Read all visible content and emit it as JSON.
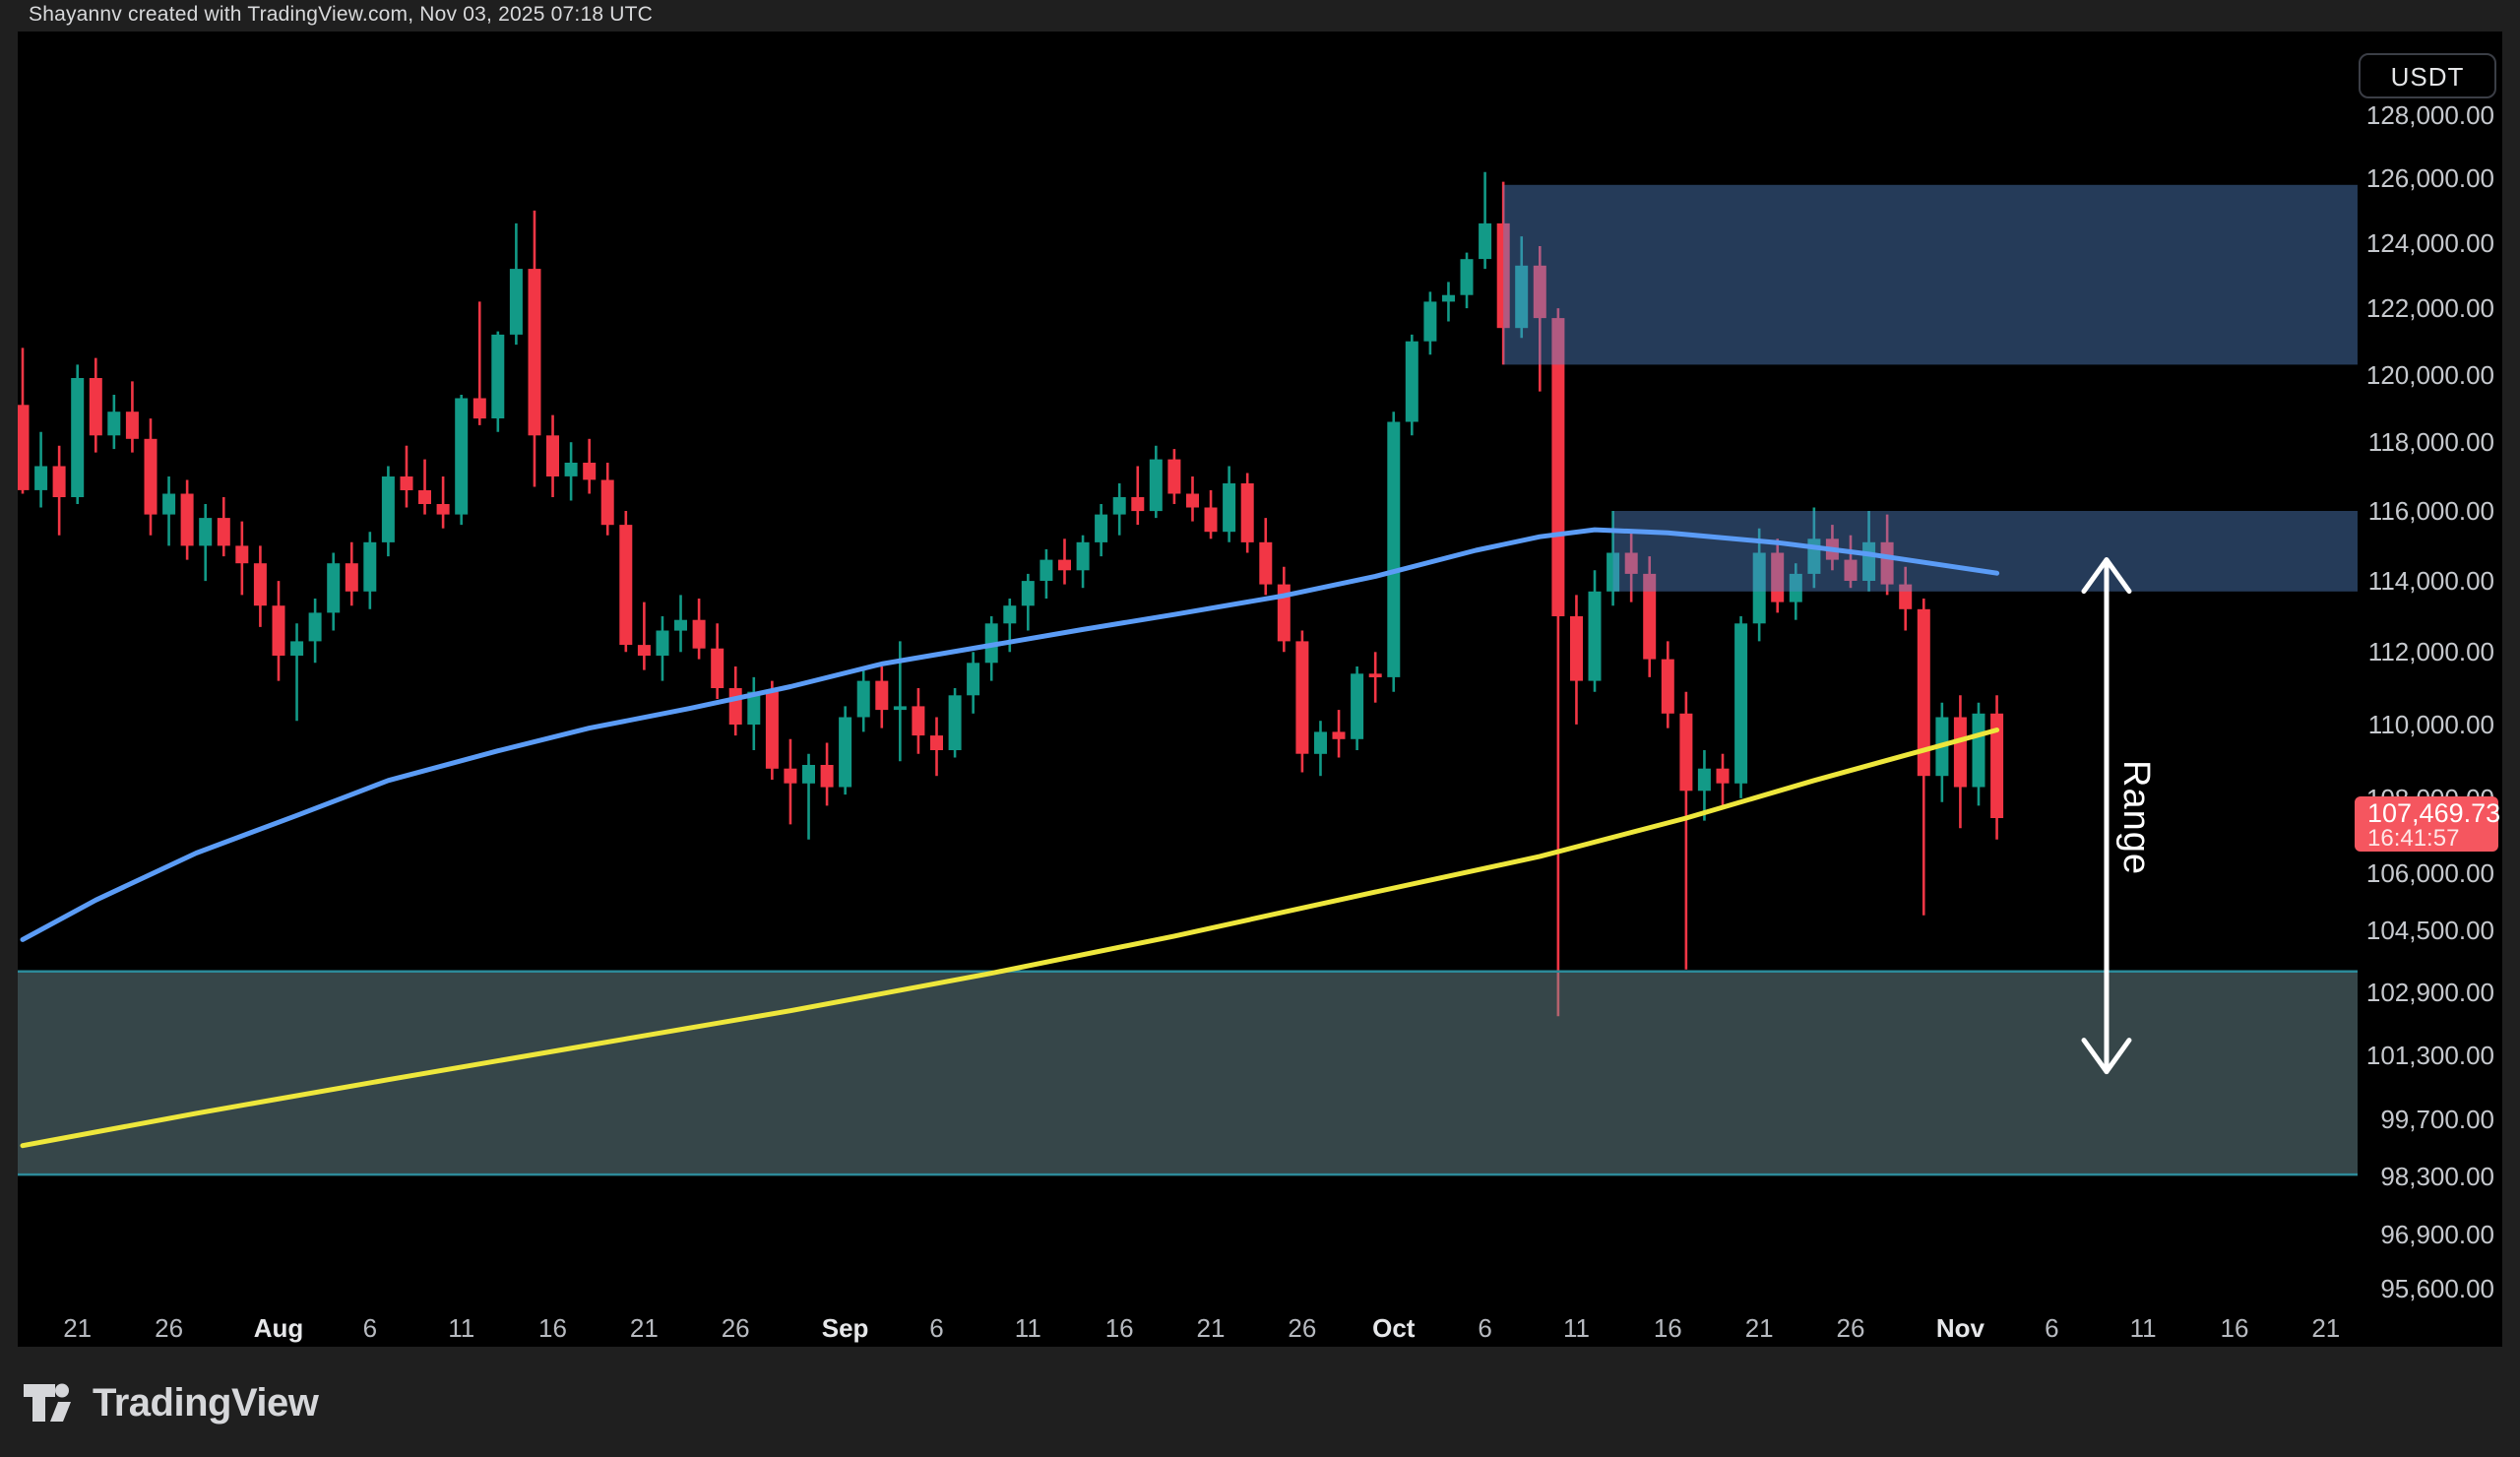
{
  "header": {
    "title": "Shayannv created with TradingView.com, Nov 03, 2025 07:18 UTC"
  },
  "symbol_badge": "USDT",
  "range_label": "Range",
  "logo_text": "TradingView",
  "last_price_tag": {
    "price": "107,469.73",
    "countdown": "16:41:57"
  },
  "price_axis": {
    "labels": [
      {
        "text": "128,000.00",
        "price": 128000
      },
      {
        "text": "126,000.00",
        "price": 126000
      },
      {
        "text": "124,000.00",
        "price": 124000
      },
      {
        "text": "122,000.00",
        "price": 122000
      },
      {
        "text": "120,000.00",
        "price": 120000
      },
      {
        "text": "118,000.00",
        "price": 118000
      },
      {
        "text": "116,000.00",
        "price": 116000
      },
      {
        "text": "114,000.00",
        "price": 114000
      },
      {
        "text": "112,000.00",
        "price": 112000
      },
      {
        "text": "110,000.00",
        "price": 110000
      },
      {
        "text": "108,000.00",
        "price": 108000
      },
      {
        "text": "106,000.00",
        "price": 106000
      },
      {
        "text": "104,500.00",
        "price": 104500
      },
      {
        "text": "102,900.00",
        "price": 102900
      },
      {
        "text": "101,300.00",
        "price": 101300
      },
      {
        "text": "99,700.00",
        "price": 99700
      },
      {
        "text": "98,300.00",
        "price": 98300
      },
      {
        "text": "96,900.00",
        "price": 96900
      },
      {
        "text": "95,600.00",
        "price": 95600
      }
    ]
  },
  "time_axis": {
    "labels": [
      {
        "text": "21",
        "day": 3
      },
      {
        "text": "26",
        "day": 8
      },
      {
        "text": "Aug",
        "day": 14,
        "bold": true
      },
      {
        "text": "6",
        "day": 19
      },
      {
        "text": "11",
        "day": 24
      },
      {
        "text": "16",
        "day": 29
      },
      {
        "text": "21",
        "day": 34
      },
      {
        "text": "26",
        "day": 39
      },
      {
        "text": "Sep",
        "day": 45,
        "bold": true
      },
      {
        "text": "6",
        "day": 50
      },
      {
        "text": "11",
        "day": 55
      },
      {
        "text": "16",
        "day": 60
      },
      {
        "text": "21",
        "day": 65
      },
      {
        "text": "26",
        "day": 70
      },
      {
        "text": "Oct",
        "day": 75,
        "bold": true
      },
      {
        "text": "6",
        "day": 80
      },
      {
        "text": "11",
        "day": 85
      },
      {
        "text": "16",
        "day": 90
      },
      {
        "text": "21",
        "day": 95
      },
      {
        "text": "26",
        "day": 100
      },
      {
        "text": "Nov",
        "day": 106,
        "bold": true
      },
      {
        "text": "6",
        "day": 111
      },
      {
        "text": "11",
        "day": 116
      },
      {
        "text": "16",
        "day": 121
      },
      {
        "text": "21",
        "day": 126
      }
    ]
  },
  "colors": {
    "up": "#129a87",
    "down": "#f23645",
    "ma_blue": "#5b9cf6",
    "ma_yellow": "#eee73c",
    "zone_blue_fill": "rgba(88,140,212,0.42)",
    "zone_teal_fill": "rgba(113,146,152,0.48)",
    "zone_teal_border": "#2d8a99",
    "tag_bg": "#f5565f",
    "arrow": "#ffffff"
  },
  "chart_data": {
    "type": "candlestick",
    "quote_currency": "USDT",
    "timeframe": "1D",
    "y_axis": {
      "scale": "log",
      "min": 95000,
      "max": 128600
    },
    "x_axis": {
      "first_candle": "Jul 18",
      "last_candle": "Nov 03",
      "axis_end": "Nov 21"
    },
    "columns": [
      "date",
      "open",
      "high",
      "low",
      "close"
    ],
    "candles": [
      [
        "Jul 18",
        119100,
        120800,
        116500,
        116600
      ],
      [
        "Jul 19",
        116600,
        118300,
        116100,
        117300
      ],
      [
        "Jul 20",
        117300,
        117900,
        115300,
        116400
      ],
      [
        "Jul 21",
        116400,
        120300,
        116200,
        119900
      ],
      [
        "Jul 22",
        119900,
        120500,
        117700,
        118200
      ],
      [
        "Jul 23",
        118200,
        119400,
        117800,
        118900
      ],
      [
        "Jul 24",
        118900,
        119800,
        117700,
        118100
      ],
      [
        "Jul 25",
        118100,
        118700,
        115300,
        115900
      ],
      [
        "Jul 26",
        115900,
        117000,
        115000,
        116500
      ],
      [
        "Jul 27",
        116500,
        116900,
        114600,
        115000
      ],
      [
        "Jul 28",
        115000,
        116200,
        114000,
        115800
      ],
      [
        "Jul 29",
        115800,
        116400,
        114700,
        115000
      ],
      [
        "Jul 30",
        115000,
        115700,
        113600,
        114500
      ],
      [
        "Jul 31",
        114500,
        115000,
        112700,
        113300
      ],
      [
        "Aug 01",
        113300,
        114000,
        111200,
        111900
      ],
      [
        "Aug 02",
        111900,
        112800,
        110100,
        112300
      ],
      [
        "Aug 03",
        112300,
        113500,
        111700,
        113100
      ],
      [
        "Aug 04",
        113100,
        114800,
        112600,
        114500
      ],
      [
        "Aug 05",
        114500,
        115100,
        113300,
        113700
      ],
      [
        "Aug 06",
        113700,
        115400,
        113200,
        115100
      ],
      [
        "Aug 07",
        115100,
        117300,
        114700,
        117000
      ],
      [
        "Aug 08",
        117000,
        117900,
        116100,
        116600
      ],
      [
        "Aug 09",
        116600,
        117500,
        115900,
        116200
      ],
      [
        "Aug 10",
        116200,
        117000,
        115500,
        115900
      ],
      [
        "Aug 11",
        115900,
        119400,
        115600,
        119300
      ],
      [
        "Aug 12",
        119300,
        122200,
        118500,
        118700
      ],
      [
        "Aug 13",
        118700,
        121300,
        118300,
        121200
      ],
      [
        "Aug 14",
        121200,
        124600,
        120900,
        123200
      ],
      [
        "Aug 15",
        123200,
        125000,
        116700,
        118200
      ],
      [
        "Aug 16",
        118200,
        118800,
        116400,
        117000
      ],
      [
        "Aug 17",
        117000,
        118000,
        116300,
        117400
      ],
      [
        "Aug 18",
        117400,
        118100,
        116500,
        116900
      ],
      [
        "Aug 19",
        116900,
        117400,
        115300,
        115600
      ],
      [
        "Aug 20",
        115600,
        116000,
        112000,
        112200
      ],
      [
        "Aug 21",
        112200,
        113400,
        111500,
        111900
      ],
      [
        "Aug 22",
        111900,
        113000,
        111200,
        112600
      ],
      [
        "Aug 23",
        112600,
        113600,
        112000,
        112900
      ],
      [
        "Aug 24",
        112900,
        113500,
        111800,
        112100
      ],
      [
        "Aug 25",
        112100,
        112800,
        110700,
        111000
      ],
      [
        "Aug 26",
        111000,
        111600,
        109700,
        110000
      ],
      [
        "Aug 27",
        110000,
        111300,
        109300,
        110900
      ],
      [
        "Aug 28",
        110900,
        111200,
        108500,
        108800
      ],
      [
        "Aug 29",
        108800,
        109600,
        107300,
        108400
      ],
      [
        "Aug 30",
        108400,
        109200,
        106900,
        108900
      ],
      [
        "Aug 31",
        108900,
        109500,
        107800,
        108300
      ],
      [
        "Sep 01",
        108300,
        110500,
        108100,
        110200
      ],
      [
        "Sep 02",
        110200,
        111500,
        109800,
        111200
      ],
      [
        "Sep 03",
        111200,
        111600,
        109900,
        110400
      ],
      [
        "Sep 04",
        110400,
        112300,
        109000,
        110500
      ],
      [
        "Sep 05",
        110500,
        111000,
        109200,
        109700
      ],
      [
        "Sep 06",
        109700,
        110200,
        108600,
        109300
      ],
      [
        "Sep 07",
        109300,
        111000,
        109100,
        110800
      ],
      [
        "Sep 08",
        110800,
        112000,
        110300,
        111700
      ],
      [
        "Sep 09",
        111700,
        113000,
        111200,
        112800
      ],
      [
        "Sep 10",
        112800,
        113500,
        112000,
        113300
      ],
      [
        "Sep 11",
        113300,
        114200,
        112600,
        114000
      ],
      [
        "Sep 12",
        114000,
        114900,
        113500,
        114600
      ],
      [
        "Sep 13",
        114600,
        115200,
        113900,
        114300
      ],
      [
        "Sep 14",
        114300,
        115300,
        113800,
        115100
      ],
      [
        "Sep 15",
        115100,
        116200,
        114700,
        115900
      ],
      [
        "Sep 16",
        115900,
        116800,
        115300,
        116400
      ],
      [
        "Sep 17",
        116400,
        117300,
        115600,
        116000
      ],
      [
        "Sep 18",
        116000,
        117900,
        115800,
        117500
      ],
      [
        "Sep 19",
        117500,
        117800,
        116200,
        116500
      ],
      [
        "Sep 20",
        116500,
        117000,
        115700,
        116100
      ],
      [
        "Sep 21",
        116100,
        116600,
        115200,
        115400
      ],
      [
        "Sep 22",
        115400,
        117300,
        115100,
        116800
      ],
      [
        "Sep 23",
        116800,
        117100,
        114800,
        115100
      ],
      [
        "Sep 24",
        115100,
        115800,
        113600,
        113900
      ],
      [
        "Sep 25",
        113900,
        114400,
        112000,
        112300
      ],
      [
        "Sep 26",
        112300,
        112600,
        108700,
        109200
      ],
      [
        "Sep 27",
        109200,
        110100,
        108600,
        109800
      ],
      [
        "Sep 28",
        109800,
        110400,
        109100,
        109600
      ],
      [
        "Sep 29",
        109600,
        111600,
        109300,
        111400
      ],
      [
        "Sep 30",
        111400,
        112000,
        110600,
        111300
      ],
      [
        "Oct 01",
        111300,
        118900,
        110900,
        118600
      ],
      [
        "Oct 02",
        118600,
        121200,
        118200,
        121000
      ],
      [
        "Oct 03",
        121000,
        122500,
        120600,
        122200
      ],
      [
        "Oct 04",
        122200,
        122800,
        121600,
        122400
      ],
      [
        "Oct 05",
        122400,
        123700,
        122000,
        123500
      ],
      [
        "Oct 06",
        123500,
        126200,
        123200,
        124600
      ],
      [
        "Oct 07",
        124600,
        125900,
        120300,
        121400
      ],
      [
        "Oct 08",
        121400,
        124200,
        121100,
        123300
      ],
      [
        "Oct 09",
        123300,
        123900,
        119500,
        121700
      ],
      [
        "Oct 10",
        121700,
        122000,
        102300,
        113000
      ],
      [
        "Oct 11",
        113000,
        113600,
        110000,
        111200
      ],
      [
        "Oct 12",
        111200,
        114300,
        110900,
        113700
      ],
      [
        "Oct 13",
        113700,
        116000,
        113300,
        114800
      ],
      [
        "Oct 14",
        114800,
        115400,
        113400,
        114200
      ],
      [
        "Oct 15",
        114200,
        114700,
        111300,
        111800
      ],
      [
        "Oct 16",
        111800,
        112300,
        109900,
        110300
      ],
      [
        "Oct 17",
        110300,
        110900,
        103500,
        108200
      ],
      [
        "Oct 18",
        108200,
        109300,
        107400,
        108800
      ],
      [
        "Oct 19",
        108800,
        109200,
        107800,
        108400
      ],
      [
        "Oct 20",
        108400,
        113000,
        108000,
        112800
      ],
      [
        "Oct 21",
        112800,
        115500,
        112300,
        114800
      ],
      [
        "Oct 22",
        114800,
        115200,
        113100,
        113400
      ],
      [
        "Oct 23",
        113400,
        114500,
        112900,
        114200
      ],
      [
        "Oct 24",
        114200,
        116100,
        113800,
        115200
      ],
      [
        "Oct 25",
        115200,
        115600,
        114300,
        114600
      ],
      [
        "Oct 26",
        114600,
        115300,
        113800,
        114000
      ],
      [
        "Oct 27",
        114000,
        116000,
        113700,
        115100
      ],
      [
        "Oct 28",
        115100,
        115900,
        113600,
        113900
      ],
      [
        "Oct 29",
        113900,
        114400,
        112600,
        113200
      ],
      [
        "Oct 30",
        113200,
        113500,
        104900,
        108600
      ],
      [
        "Oct 31",
        108600,
        110600,
        107900,
        110200
      ],
      [
        "Nov 01",
        110200,
        110800,
        107200,
        108300
      ],
      [
        "Nov 02",
        108300,
        110600,
        107800,
        110300
      ],
      [
        "Nov 03",
        110300,
        110800,
        106900,
        107470
      ]
    ],
    "overlays": {
      "ma_blue": {
        "name": "moving-average-blue",
        "points": [
          [
            0,
            104270
          ],
          [
            4,
            105300
          ],
          [
            9.5,
            106540
          ],
          [
            15,
            107540
          ],
          [
            20,
            108480
          ],
          [
            26,
            109280
          ],
          [
            31,
            109900
          ],
          [
            36.5,
            110440
          ],
          [
            42,
            111040
          ],
          [
            47,
            111670
          ],
          [
            53,
            112190
          ],
          [
            58,
            112630
          ],
          [
            63,
            113050
          ],
          [
            69,
            113580
          ],
          [
            74,
            114130
          ],
          [
            79.5,
            114870
          ],
          [
            83,
            115260
          ],
          [
            86,
            115460
          ],
          [
            90,
            115370
          ],
          [
            96,
            115090
          ],
          [
            101,
            114760
          ],
          [
            108,
            114220
          ]
        ]
      },
      "ma_yellow": {
        "name": "moving-average-yellow",
        "points": [
          [
            0,
            99060
          ],
          [
            9.5,
            99860
          ],
          [
            20,
            100700
          ],
          [
            31,
            101570
          ],
          [
            42,
            102440
          ],
          [
            53,
            103400
          ],
          [
            63,
            104360
          ],
          [
            74,
            105510
          ],
          [
            83,
            106450
          ],
          [
            91,
            107470
          ],
          [
            98,
            108480
          ],
          [
            108,
            109850
          ]
        ]
      }
    },
    "zones": [
      {
        "name": "supply-zone-upper",
        "style": "blue",
        "day_start": 81,
        "to_right_edge": true,
        "price_top": 125800,
        "price_bottom": 120300
      },
      {
        "name": "supply-zone-lower",
        "style": "blue",
        "day_start": 87,
        "to_right_edge": true,
        "price_top": 116000,
        "price_bottom": 113700
      },
      {
        "name": "demand-zone",
        "style": "teal",
        "from_left_edge": true,
        "to_right_edge": true,
        "price_top": 103450,
        "price_bottom": 98350
      }
    ],
    "range_arrow": {
      "day": 114,
      "price_top": 114600,
      "price_bottom": 100900,
      "label": "Range"
    }
  }
}
